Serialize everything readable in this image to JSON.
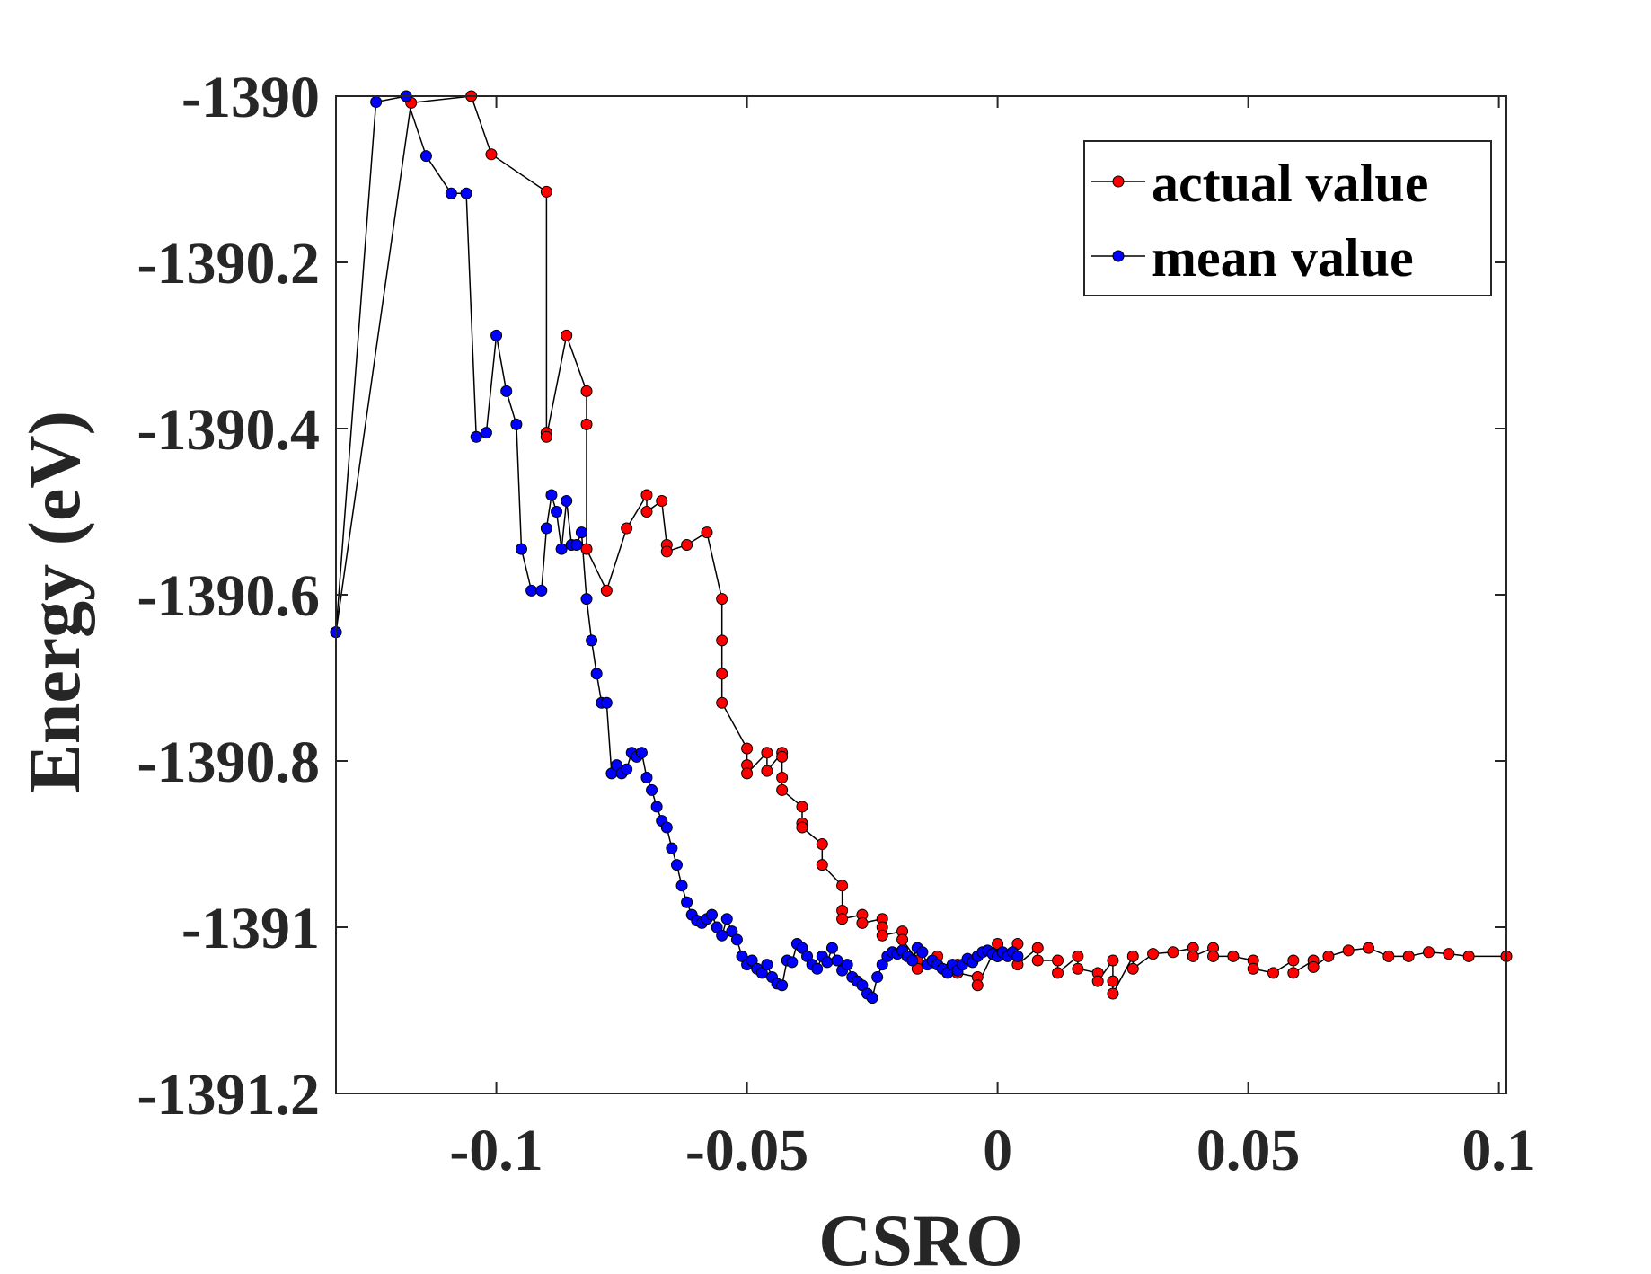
{
  "chart_data": {
    "type": "line",
    "xlabel": "CSRO",
    "ylabel": "Energy (eV)",
    "xlim": [
      -0.132,
      0.1015
    ],
    "ylim": [
      -1391.2,
      -1390.0
    ],
    "xticks": [
      -0.1,
      -0.05,
      0,
      0.05,
      0.1
    ],
    "xtick_labels": [
      "-0.1",
      "-0.05",
      "0",
      "0.05",
      "0.1"
    ],
    "yticks": [
      -1390.0,
      -1390.2,
      -1390.4,
      -1390.6,
      -1390.8,
      -1391.0,
      -1391.2
    ],
    "ytick_labels": [
      "-1390",
      "-1390.2",
      "-1390.4",
      "-1390.6",
      "-1390.8",
      "-1391",
      "-1391.2"
    ],
    "grid": false,
    "legend_position": "top-right",
    "line_color": "#000000",
    "series": [
      {
        "name": "actual value",
        "marker_color": "#ff0000",
        "x": [
          -0.132,
          -0.117,
          -0.105,
          -0.101,
          -0.09,
          -0.09,
          -0.09,
          -0.086,
          -0.082,
          -0.082,
          -0.082,
          -0.078,
          -0.074,
          -0.07,
          -0.07,
          -0.067,
          -0.066,
          -0.066,
          -0.062,
          -0.058,
          -0.055,
          -0.055,
          -0.055,
          -0.055,
          -0.05,
          -0.05,
          -0.05,
          -0.046,
          -0.046,
          -0.043,
          -0.043,
          -0.043,
          -0.043,
          -0.039,
          -0.039,
          -0.039,
          -0.035,
          -0.035,
          -0.031,
          -0.031,
          -0.031,
          -0.027,
          -0.027,
          -0.023,
          -0.023,
          -0.023,
          -0.019,
          -0.019,
          -0.016,
          -0.016,
          -0.012,
          -0.012,
          -0.008,
          -0.008,
          -0.004,
          -0.004,
          0.0,
          0.0,
          0.004,
          0.004,
          0.008,
          0.008,
          0.012,
          0.012,
          0.016,
          0.016,
          0.02,
          0.02,
          0.023,
          0.023,
          0.023,
          0.027,
          0.027,
          0.031,
          0.035,
          0.039,
          0.039,
          0.043,
          0.043,
          0.047,
          0.051,
          0.051,
          0.055,
          0.059,
          0.059,
          0.063,
          0.063,
          0.066,
          0.07,
          0.074,
          0.078,
          0.082,
          0.086,
          0.09,
          0.094,
          0.1015
        ],
        "y": [
          -1390.645,
          -1390.008,
          -1390.0,
          -1390.07,
          -1390.115,
          -1390.405,
          -1390.41,
          -1390.288,
          -1390.355,
          -1390.395,
          -1390.545,
          -1390.595,
          -1390.52,
          -1390.48,
          -1390.5,
          -1390.487,
          -1390.54,
          -1390.548,
          -1390.54,
          -1390.525,
          -1390.605,
          -1390.655,
          -1390.695,
          -1390.73,
          -1390.785,
          -1390.805,
          -1390.815,
          -1390.79,
          -1390.812,
          -1390.79,
          -1390.795,
          -1390.82,
          -1390.835,
          -1390.855,
          -1390.875,
          -1390.88,
          -1390.9,
          -1390.925,
          -1390.95,
          -1390.98,
          -1390.99,
          -1390.985,
          -1390.995,
          -1390.99,
          -1391.0,
          -1391.01,
          -1391.005,
          -1391.015,
          -1391.04,
          -1391.05,
          -1391.035,
          -1391.045,
          -1391.045,
          -1391.055,
          -1391.06,
          -1391.07,
          -1391.02,
          -1391.035,
          -1391.02,
          -1391.045,
          -1391.025,
          -1391.04,
          -1391.04,
          -1391.055,
          -1391.035,
          -1391.05,
          -1391.055,
          -1391.065,
          -1391.04,
          -1391.065,
          -1391.08,
          -1391.035,
          -1391.05,
          -1391.032,
          -1391.03,
          -1391.025,
          -1391.035,
          -1391.025,
          -1391.035,
          -1391.035,
          -1391.04,
          -1391.05,
          -1391.055,
          -1391.04,
          -1391.055,
          -1391.04,
          -1391.048,
          -1391.035,
          -1391.028,
          -1391.025,
          -1391.035,
          -1391.035,
          -1391.03,
          -1391.032,
          -1391.035,
          -1391.035
        ]
      },
      {
        "name": "mean value",
        "marker_color": "#0000ff",
        "x": [
          -0.132,
          -0.124,
          -0.118,
          -0.114,
          -0.109,
          -0.106,
          -0.104,
          -0.102,
          -0.1,
          -0.098,
          -0.096,
          -0.095,
          -0.093,
          -0.091,
          -0.09,
          -0.089,
          -0.088,
          -0.087,
          -0.086,
          -0.085,
          -0.084,
          -0.083,
          -0.082,
          -0.081,
          -0.08,
          -0.079,
          -0.078,
          -0.077,
          -0.076,
          -0.075,
          -0.074,
          -0.073,
          -0.072,
          -0.071,
          -0.07,
          -0.069,
          -0.068,
          -0.067,
          -0.066,
          -0.065,
          -0.064,
          -0.063,
          -0.062,
          -0.061,
          -0.06,
          -0.059,
          -0.058,
          -0.057,
          -0.056,
          -0.055,
          -0.054,
          -0.053,
          -0.052,
          -0.051,
          -0.05,
          -0.049,
          -0.048,
          -0.047,
          -0.046,
          -0.045,
          -0.044,
          -0.043,
          -0.042,
          -0.041,
          -0.04,
          -0.039,
          -0.038,
          -0.037,
          -0.036,
          -0.035,
          -0.034,
          -0.033,
          -0.032,
          -0.031,
          -0.03,
          -0.029,
          -0.028,
          -0.027,
          -0.026,
          -0.025,
          -0.024,
          -0.023,
          -0.022,
          -0.021,
          -0.02,
          -0.019,
          -0.018,
          -0.017,
          -0.016,
          -0.015,
          -0.014,
          -0.013,
          -0.012,
          -0.011,
          -0.01,
          -0.009,
          -0.008,
          -0.007,
          -0.006,
          -0.005,
          -0.004,
          -0.003,
          -0.002,
          -0.001,
          0.0,
          0.001,
          0.002,
          0.003,
          0.004
        ],
        "y": [
          -1390.645,
          -1390.007,
          -1390.0,
          -1390.072,
          -1390.117,
          -1390.117,
          -1390.41,
          -1390.405,
          -1390.288,
          -1390.355,
          -1390.395,
          -1390.545,
          -1390.595,
          -1390.595,
          -1390.52,
          -1390.48,
          -1390.5,
          -1390.545,
          -1390.487,
          -1390.54,
          -1390.54,
          -1390.525,
          -1390.605,
          -1390.655,
          -1390.695,
          -1390.73,
          -1390.73,
          -1390.815,
          -1390.805,
          -1390.815,
          -1390.81,
          -1390.79,
          -1390.795,
          -1390.79,
          -1390.82,
          -1390.835,
          -1390.855,
          -1390.872,
          -1390.88,
          -1390.905,
          -1390.925,
          -1390.95,
          -1390.97,
          -1390.985,
          -1390.992,
          -1390.995,
          -1390.99,
          -1390.985,
          -1391.0,
          -1391.01,
          -1390.99,
          -1391.005,
          -1391.015,
          -1391.035,
          -1391.045,
          -1391.04,
          -1391.05,
          -1391.055,
          -1391.045,
          -1391.06,
          -1391.068,
          -1391.07,
          -1391.04,
          -1391.042,
          -1391.02,
          -1391.025,
          -1391.035,
          -1391.045,
          -1391.05,
          -1391.035,
          -1391.042,
          -1391.025,
          -1391.04,
          -1391.052,
          -1391.045,
          -1391.06,
          -1391.065,
          -1391.07,
          -1391.08,
          -1391.085,
          -1391.06,
          -1391.045,
          -1391.035,
          -1391.03,
          -1391.032,
          -1391.028,
          -1391.035,
          -1391.04,
          -1391.025,
          -1391.03,
          -1391.045,
          -1391.04,
          -1391.045,
          -1391.05,
          -1391.055,
          -1391.045,
          -1391.052,
          -1391.045,
          -1391.038,
          -1391.042,
          -1391.035,
          -1391.03,
          -1391.028,
          -1391.032,
          -1391.035,
          -1391.03,
          -1391.035,
          -1391.03,
          -1391.035
        ]
      }
    ]
  }
}
